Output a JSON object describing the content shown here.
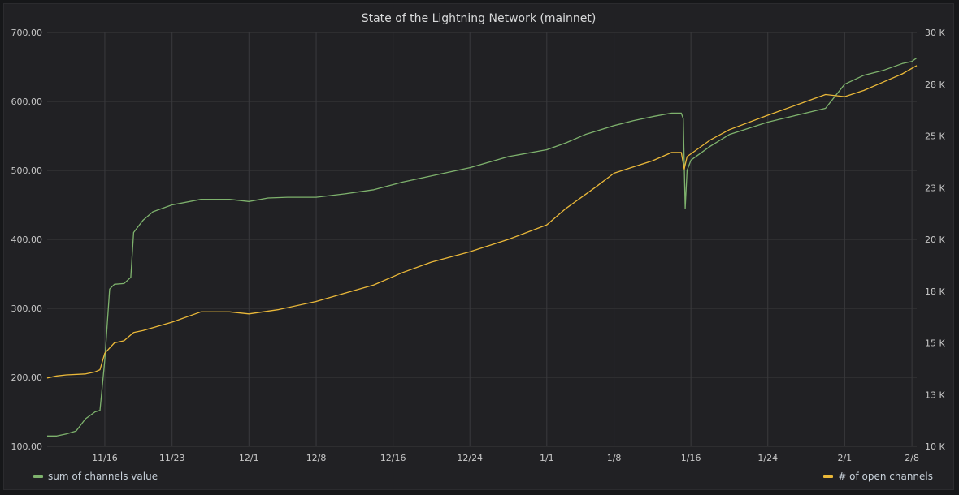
{
  "panel": {
    "title": "State of the Lightning Network (mainnet)"
  },
  "legend": {
    "left": {
      "label": "sum of channels value",
      "color": "#7eb26d"
    },
    "right": {
      "label": "# of open channels",
      "color": "#eab839"
    }
  },
  "chart_data": {
    "type": "line",
    "title": "State of the Lightning Network (mainnet)",
    "grid": true,
    "legend_position": "bottom",
    "x_ticks": [
      "11/16",
      "11/23",
      "12/1",
      "12/8",
      "12/16",
      "12/24",
      "1/1",
      "1/8",
      "1/16",
      "1/24",
      "2/1",
      "2/8"
    ],
    "y_left": {
      "ticks": [
        "100.00",
        "200.00",
        "300.00",
        "400.00",
        "500.00",
        "600.00",
        "700.00"
      ],
      "range": [
        100,
        700
      ]
    },
    "y_right": {
      "ticks": [
        "10 K",
        "13 K",
        "15 K",
        "18 K",
        "20 K",
        "23 K",
        "25 K",
        "28 K",
        "30 K"
      ],
      "range": [
        10000,
        30000
      ]
    },
    "series": [
      {
        "name": "sum of channels value",
        "axis": "left",
        "color": "#7eb26d",
        "points": [
          [
            "11/10",
            115
          ],
          [
            "11/11",
            115
          ],
          [
            "11/12",
            118
          ],
          [
            "11/13",
            122
          ],
          [
            "11/14",
            140
          ],
          [
            "11/15",
            150
          ],
          [
            "11/15.5",
            152
          ],
          [
            "11/16",
            225
          ],
          [
            "11/16.5",
            328
          ],
          [
            "11/17",
            335
          ],
          [
            "11/18",
            336
          ],
          [
            "11/18.7",
            345
          ],
          [
            "11/19",
            410
          ],
          [
            "11/20",
            428
          ],
          [
            "11/21",
            440
          ],
          [
            "11/23",
            450
          ],
          [
            "11/26",
            458
          ],
          [
            "11/29",
            458
          ],
          [
            "12/1",
            455
          ],
          [
            "12/3",
            460
          ],
          [
            "12/5",
            461
          ],
          [
            "12/8",
            461
          ],
          [
            "12/11",
            466
          ],
          [
            "12/14",
            472
          ],
          [
            "12/17",
            483
          ],
          [
            "12/20",
            492
          ],
          [
            "12/24",
            504
          ],
          [
            "12/28",
            520
          ],
          [
            "1/1",
            530
          ],
          [
            "1/3",
            540
          ],
          [
            "1/5",
            552
          ],
          [
            "1/8",
            565
          ],
          [
            "1/10",
            572
          ],
          [
            "1/12",
            578
          ],
          [
            "1/14",
            583
          ],
          [
            "1/15",
            583
          ],
          [
            "1/15.2",
            575
          ],
          [
            "1/15.4",
            445
          ],
          [
            "1/15.6",
            500
          ],
          [
            "1/16",
            515
          ],
          [
            "1/18",
            535
          ],
          [
            "1/20",
            552
          ],
          [
            "1/24",
            570
          ],
          [
            "1/27",
            580
          ],
          [
            "1/30",
            590
          ],
          [
            "2/1",
            625
          ],
          [
            "2/3",
            638
          ],
          [
            "2/5",
            645
          ],
          [
            "2/7",
            655
          ],
          [
            "2/8",
            658
          ],
          [
            "2/8.5",
            663
          ]
        ]
      },
      {
        "name": "# of open channels",
        "axis": "right",
        "color": "#eab839",
        "points": [
          [
            "11/10",
            13300
          ],
          [
            "11/11",
            13400
          ],
          [
            "11/12",
            13450
          ],
          [
            "11/14",
            13500
          ],
          [
            "11/15",
            13600
          ],
          [
            "11/15.5",
            13700
          ],
          [
            "11/16",
            14500
          ],
          [
            "11/17",
            15000
          ],
          [
            "11/18",
            15100
          ],
          [
            "11/19",
            15500
          ],
          [
            "11/20",
            15600
          ],
          [
            "11/23",
            16000
          ],
          [
            "11/26",
            16500
          ],
          [
            "11/29",
            16500
          ],
          [
            "12/1",
            16400
          ],
          [
            "12/4",
            16600
          ],
          [
            "12/8",
            17000
          ],
          [
            "12/11",
            17400
          ],
          [
            "12/14",
            17800
          ],
          [
            "12/17",
            18400
          ],
          [
            "12/20",
            18900
          ],
          [
            "12/24",
            19400
          ],
          [
            "12/28",
            20000
          ],
          [
            "1/1",
            20700
          ],
          [
            "1/3",
            21500
          ],
          [
            "1/6",
            22500
          ],
          [
            "1/8",
            23200
          ],
          [
            "1/10",
            23500
          ],
          [
            "1/12",
            23800
          ],
          [
            "1/14",
            24200
          ],
          [
            "1/15",
            24200
          ],
          [
            "1/15.3",
            23400
          ],
          [
            "1/15.6",
            24000
          ],
          [
            "1/18",
            24800
          ],
          [
            "1/20",
            25300
          ],
          [
            "1/24",
            26000
          ],
          [
            "1/27",
            26500
          ],
          [
            "1/30",
            27000
          ],
          [
            "2/1",
            26900
          ],
          [
            "2/3",
            27200
          ],
          [
            "2/5",
            27600
          ],
          [
            "2/7",
            28000
          ],
          [
            "2/8.5",
            28400
          ]
        ]
      }
    ]
  }
}
